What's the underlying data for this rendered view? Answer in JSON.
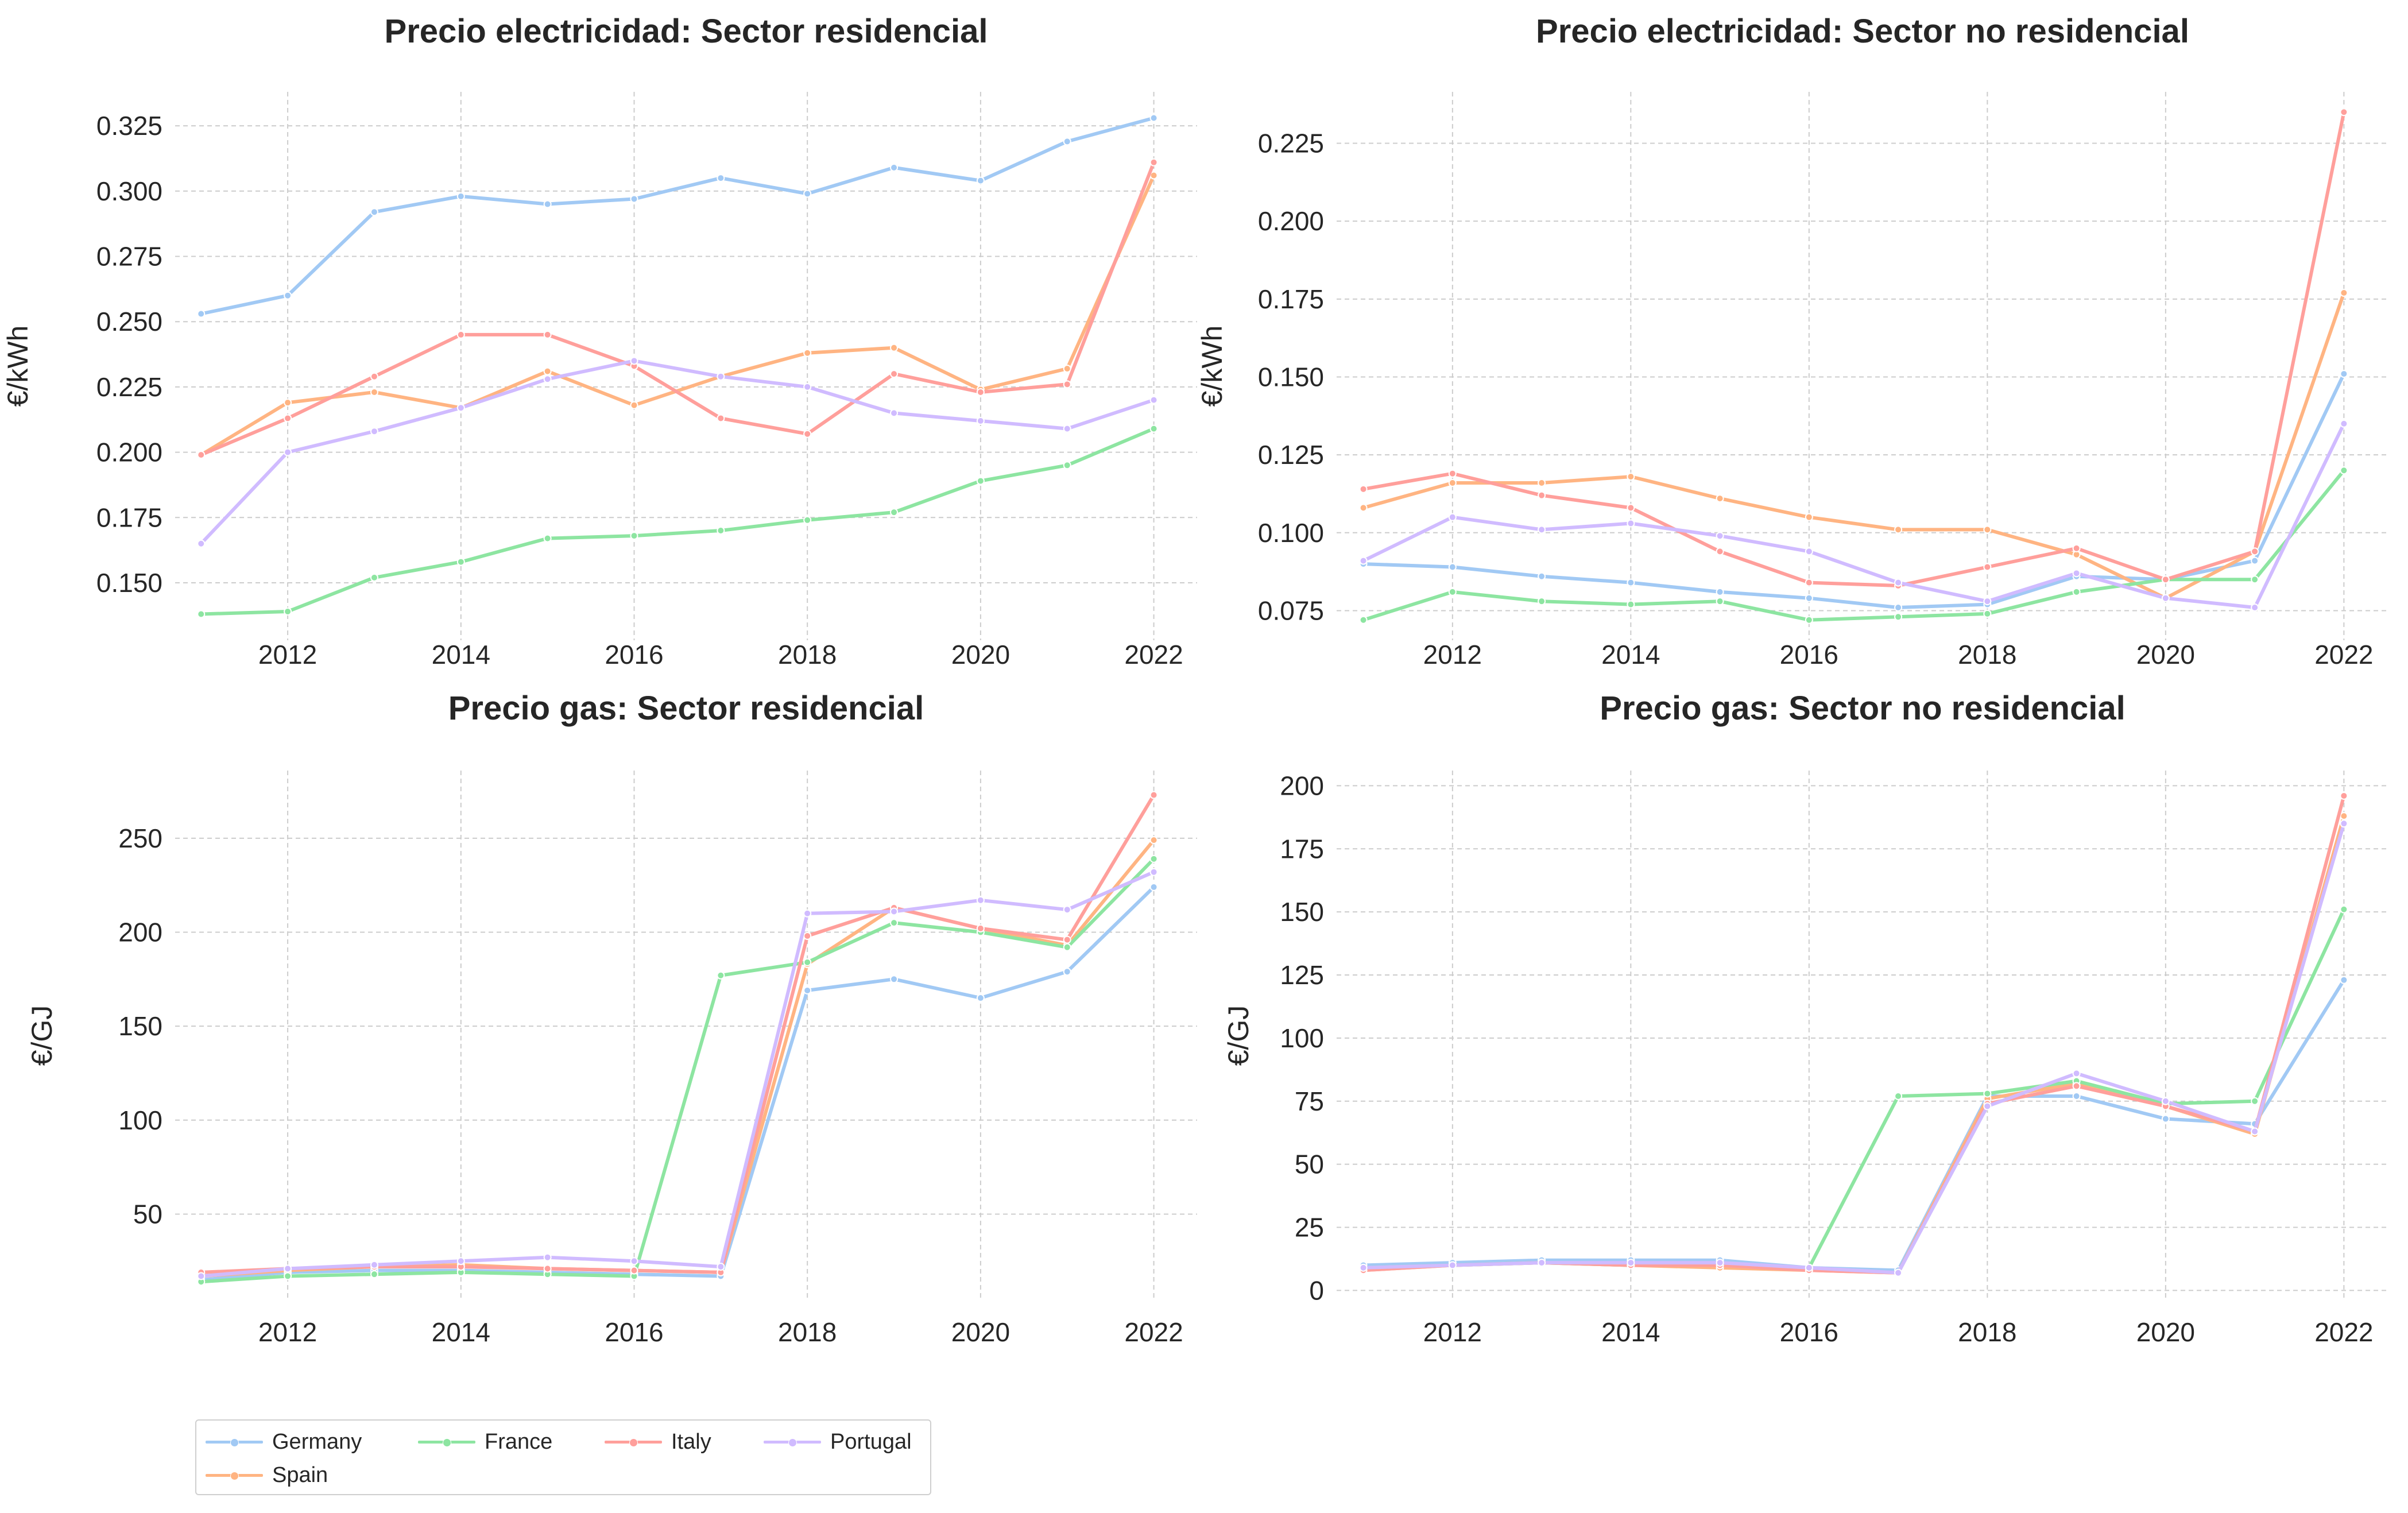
{
  "legend": {
    "placement": "bottom-left",
    "entries": [
      {
        "name": "Germany",
        "color": "#a1c9f4"
      },
      {
        "name": "France",
        "color": "#8de5a1"
      },
      {
        "name": "Italy",
        "color": "#ff9f9b"
      },
      {
        "name": "Portugal",
        "color": "#d0bbff"
      },
      {
        "name": "Spain",
        "color": "#ffb482"
      }
    ]
  },
  "chart_data": [
    {
      "type": "line",
      "title": "Precio electricidad: Sector residencial",
      "xlabel": "",
      "ylabel": "€/kWh",
      "xlim": [
        2010.7,
        2022.5
      ],
      "ylim": [
        0.128,
        0.338
      ],
      "xticks": [
        "2012",
        "2014",
        "2016",
        "2018",
        "2020",
        "2022"
      ],
      "yticks": [
        "0.150",
        "0.175",
        "0.200",
        "0.225",
        "0.250",
        "0.275",
        "0.300",
        "0.325"
      ],
      "grid": true,
      "x": [
        2011,
        2012,
        2013,
        2014,
        2015,
        2016,
        2017,
        2018,
        2019,
        2020,
        2021,
        2022
      ],
      "series": [
        {
          "name": "Germany",
          "color": "#a1c9f4",
          "values": [
            0.253,
            0.26,
            0.292,
            0.298,
            0.295,
            0.297,
            0.305,
            0.299,
            0.309,
            0.304,
            0.319,
            0.328
          ]
        },
        {
          "name": "Spain",
          "color": "#ffb482",
          "values": [
            0.199,
            0.219,
            0.223,
            0.217,
            0.231,
            0.218,
            0.229,
            0.238,
            0.24,
            0.224,
            0.232,
            0.306
          ]
        },
        {
          "name": "France",
          "color": "#8de5a1",
          "values": [
            0.138,
            0.139,
            0.152,
            0.158,
            0.167,
            0.168,
            0.17,
            0.174,
            0.177,
            0.189,
            0.195,
            0.209
          ]
        },
        {
          "name": "Italy",
          "color": "#ff9f9b",
          "values": [
            0.199,
            0.213,
            0.229,
            0.245,
            0.245,
            0.233,
            0.213,
            0.207,
            0.23,
            0.223,
            0.226,
            0.311
          ]
        },
        {
          "name": "Portugal",
          "color": "#d0bbff",
          "values": [
            0.165,
            0.2,
            0.208,
            0.217,
            0.228,
            0.235,
            0.229,
            0.225,
            0.215,
            0.212,
            0.209,
            0.22
          ]
        }
      ]
    },
    {
      "type": "line",
      "title": "Precio electricidad: Sector no residencial",
      "xlabel": "",
      "ylabel": "€/kWh",
      "xlim": [
        2010.7,
        2022.5
      ],
      "ylim": [
        0.0655,
        0.2415
      ],
      "xticks": [
        "2012",
        "2014",
        "2016",
        "2018",
        "2020",
        "2022"
      ],
      "yticks": [
        "0.075",
        "0.100",
        "0.125",
        "0.150",
        "0.175",
        "0.200",
        "0.225"
      ],
      "grid": true,
      "x": [
        2011,
        2012,
        2013,
        2014,
        2015,
        2016,
        2017,
        2018,
        2019,
        2020,
        2021,
        2022
      ],
      "series": [
        {
          "name": "Germany",
          "color": "#a1c9f4",
          "values": [
            0.09,
            0.089,
            0.086,
            0.084,
            0.081,
            0.079,
            0.076,
            0.077,
            0.086,
            0.085,
            0.091,
            0.151
          ]
        },
        {
          "name": "Spain",
          "color": "#ffb482",
          "values": [
            0.108,
            0.116,
            0.116,
            0.118,
            0.111,
            0.105,
            0.101,
            0.101,
            0.093,
            0.079,
            0.094,
            0.177
          ]
        },
        {
          "name": "France",
          "color": "#8de5a1",
          "values": [
            0.072,
            0.081,
            0.078,
            0.077,
            0.078,
            0.072,
            0.073,
            0.074,
            0.081,
            0.085,
            0.085,
            0.12
          ]
        },
        {
          "name": "Italy",
          "color": "#ff9f9b",
          "values": [
            0.114,
            0.119,
            0.112,
            0.108,
            0.094,
            0.084,
            0.083,
            0.089,
            0.095,
            0.085,
            0.094,
            0.235
          ]
        },
        {
          "name": "Portugal",
          "color": "#d0bbff",
          "values": [
            0.091,
            0.105,
            0.101,
            0.103,
            0.099,
            0.094,
            0.084,
            0.078,
            0.087,
            0.079,
            0.076,
            0.135
          ]
        }
      ]
    },
    {
      "type": "line",
      "title": "Precio gas: Sector residencial",
      "xlabel": "",
      "ylabel": "€/GJ",
      "xlim": [
        2010.7,
        2022.5
      ],
      "ylim": [
        4,
        286
      ],
      "xticks": [
        "2012",
        "2014",
        "2016",
        "2018",
        "2020",
        "2022"
      ],
      "yticks": [
        "50",
        "100",
        "150",
        "200",
        "250"
      ],
      "grid": true,
      "x": [
        2011,
        2012,
        2013,
        2014,
        2015,
        2016,
        2017,
        2018,
        2019,
        2020,
        2021,
        2022
      ],
      "series": [
        {
          "name": "Germany",
          "color": "#a1c9f4",
          "values": [
            15,
            19,
            20,
            20,
            19,
            18,
            17,
            169,
            175,
            165,
            179,
            224
          ]
        },
        {
          "name": "Spain",
          "color": "#ffb482",
          "values": [
            17,
            20,
            22,
            23,
            21,
            20,
            19,
            183,
            213,
            202,
            193,
            249
          ]
        },
        {
          "name": "France",
          "color": "#8de5a1",
          "values": [
            14,
            17,
            18,
            19,
            18,
            17,
            177,
            184,
            205,
            200,
            192,
            239
          ]
        },
        {
          "name": "Italy",
          "color": "#ff9f9b",
          "values": [
            19,
            21,
            22,
            22,
            21,
            20,
            19,
            198,
            213,
            202,
            196,
            273
          ]
        },
        {
          "name": "Portugal",
          "color": "#d0bbff",
          "values": [
            17,
            21,
            23,
            25,
            27,
            25,
            22,
            210,
            211,
            217,
            212,
            232
          ]
        }
      ]
    },
    {
      "type": "line",
      "title": "Precio gas: Sector no residencial",
      "xlabel": "",
      "ylabel": "€/GJ",
      "xlim": [
        2010.7,
        2022.5
      ],
      "ylim": [
        -4,
        206
      ],
      "xticks": [
        "2012",
        "2014",
        "2016",
        "2018",
        "2020",
        "2022"
      ],
      "yticks": [
        "0",
        "25",
        "50",
        "75",
        "100",
        "125",
        "150",
        "175",
        "200"
      ],
      "grid": true,
      "x": [
        2011,
        2012,
        2013,
        2014,
        2015,
        2016,
        2017,
        2018,
        2019,
        2020,
        2021,
        2022
      ],
      "series": [
        {
          "name": "Germany",
          "color": "#a1c9f4",
          "values": [
            10,
            11,
            12,
            12,
            12,
            9,
            8,
            77,
            77,
            68,
            66,
            123
          ]
        },
        {
          "name": "Spain",
          "color": "#ffb482",
          "values": [
            8,
            10,
            11,
            10,
            9,
            8,
            7,
            76,
            82,
            73,
            62,
            188
          ]
        },
        {
          "name": "France",
          "color": "#8de5a1",
          "values": [
            9,
            10,
            11,
            10,
            10,
            9,
            77,
            78,
            83,
            74,
            75,
            151
          ]
        },
        {
          "name": "Italy",
          "color": "#ff9f9b",
          "values": [
            8,
            10,
            11,
            10,
            10,
            8,
            7,
            74,
            81,
            73,
            63,
            196
          ]
        },
        {
          "name": "Portugal",
          "color": "#d0bbff",
          "values": [
            9,
            10,
            11,
            11,
            11,
            9,
            7,
            73,
            86,
            75,
            63,
            185
          ]
        }
      ]
    }
  ]
}
